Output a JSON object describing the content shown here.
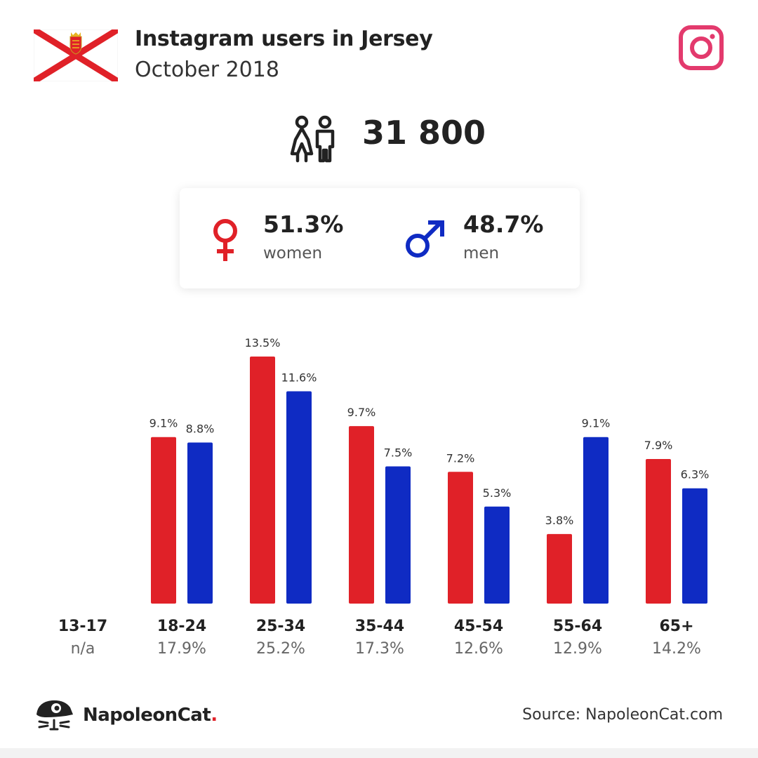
{
  "header": {
    "title": "Instagram users in Jersey",
    "subtitle": "October 2018"
  },
  "summary": {
    "total": "31 800",
    "women_pct": "51.3%",
    "women_label": "women",
    "men_pct": "48.7%",
    "men_label": "men"
  },
  "colors": {
    "women": "#e02128",
    "men": "#0f2bc3",
    "instagram": "#e33a6d"
  },
  "icons": [
    "jersey-flag-icon",
    "instagram-icon",
    "people-icon",
    "female-icon",
    "male-icon",
    "napoleoncat-logo-icon"
  ],
  "chart_data": {
    "type": "bar",
    "categories": [
      "13-17",
      "18-24",
      "25-34",
      "35-44",
      "45-54",
      "55-64",
      "65+"
    ],
    "category_shares": [
      "n/a",
      "17.9%",
      "25.2%",
      "17.3%",
      "12.6%",
      "12.9%",
      "14.2%"
    ],
    "series": [
      {
        "name": "women",
        "values": [
          null,
          9.1,
          13.5,
          9.7,
          7.2,
          3.8,
          7.9
        ],
        "labels": [
          "",
          "9.1%",
          "13.5%",
          "9.7%",
          "7.2%",
          "3.8%",
          "7.9%"
        ],
        "color": "#e02128"
      },
      {
        "name": "men",
        "values": [
          null,
          8.8,
          11.6,
          7.5,
          5.3,
          9.1,
          6.3
        ],
        "labels": [
          "",
          "8.8%",
          "11.6%",
          "7.5%",
          "5.3%",
          "9.1%",
          "6.3%"
        ],
        "color": "#0f2bc3"
      }
    ],
    "ylim": [
      0,
      13.5
    ],
    "grid": false
  },
  "footer": {
    "brand_name": "NapoleonCat",
    "brand_dot": ".",
    "source": "Source: NapoleonCat.com"
  }
}
